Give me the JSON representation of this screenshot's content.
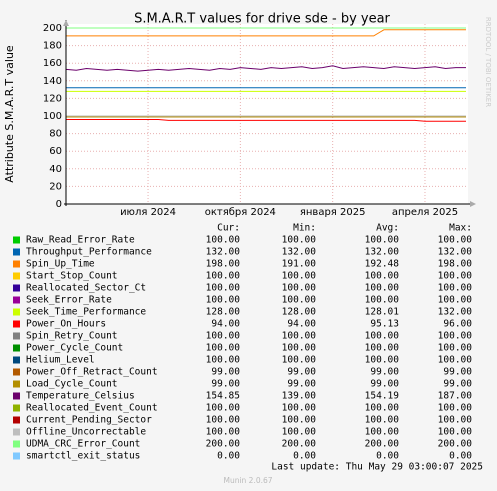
{
  "chart_data": {
    "type": "line",
    "title": "S.M.A.R.T values for drive sde - by year",
    "y_label": "Attribute S.M.A.R.T value",
    "categories": [
      null,
      null,
      null,
      null,
      null,
      null,
      null,
      null,
      "июля 2024",
      null,
      null,
      null,
      null,
      null,
      null,
      null,
      null,
      "октября 2024",
      null,
      null,
      null,
      null,
      null,
      null,
      null,
      null,
      "января 2025",
      null,
      null,
      null,
      null,
      null,
      null,
      null,
      null,
      "апреля 2025",
      null,
      null,
      null,
      null
    ],
    "ylim": [
      0,
      200
    ],
    "yticks": [
      0,
      20,
      40,
      60,
      80,
      100,
      120,
      140,
      160,
      180,
      200
    ],
    "grid": true,
    "columns": [
      "Cur:",
      "Min:",
      "Avg:",
      "Max:"
    ],
    "series": [
      {
        "name": "Raw_Read_Error_Rate",
        "color": "#00cc00",
        "stats": [
          "100.00",
          "100.00",
          "100.00",
          "100.00"
        ],
        "values": [
          100,
          100,
          100,
          100,
          100,
          100,
          100,
          100,
          100,
          100,
          100,
          100,
          100,
          100,
          100,
          100,
          100,
          100,
          100,
          100,
          100,
          100,
          100,
          100,
          100,
          100,
          100,
          100,
          100,
          100,
          100,
          100,
          100,
          100,
          100,
          100,
          100,
          100,
          100,
          100
        ]
      },
      {
        "name": "Throughput_Performance",
        "color": "#0066b3",
        "stats": [
          "132.00",
          "132.00",
          "132.00",
          "132.00"
        ],
        "values": [
          132,
          132,
          132,
          132,
          132,
          132,
          132,
          132,
          132,
          132,
          132,
          132,
          132,
          132,
          132,
          132,
          132,
          132,
          132,
          132,
          132,
          132,
          132,
          132,
          132,
          132,
          132,
          132,
          132,
          132,
          132,
          132,
          132,
          132,
          132,
          132,
          132,
          132,
          132,
          132
        ]
      },
      {
        "name": "Spin_Up_Time",
        "color": "#ff8000",
        "stats": [
          "198.00",
          "191.00",
          "192.48",
          "198.00"
        ],
        "values": [
          191,
          191,
          191,
          191,
          191,
          191,
          191,
          191,
          191,
          191,
          191,
          191,
          191,
          191,
          191,
          191,
          191,
          191,
          191,
          191,
          191,
          191,
          191,
          191,
          191,
          191,
          191,
          191,
          191,
          191,
          191,
          198,
          198,
          198,
          198,
          198,
          198,
          198,
          198,
          198
        ]
      },
      {
        "name": "Start_Stop_Count",
        "color": "#ffcc00",
        "stats": [
          "100.00",
          "100.00",
          "100.00",
          "100.00"
        ],
        "values": [
          100,
          100,
          100,
          100,
          100,
          100,
          100,
          100,
          100,
          100,
          100,
          100,
          100,
          100,
          100,
          100,
          100,
          100,
          100,
          100,
          100,
          100,
          100,
          100,
          100,
          100,
          100,
          100,
          100,
          100,
          100,
          100,
          100,
          100,
          100,
          100,
          100,
          100,
          100,
          100
        ]
      },
      {
        "name": "Reallocated_Sector_Ct",
        "color": "#330099",
        "stats": [
          "100.00",
          "100.00",
          "100.00",
          "100.00"
        ],
        "values": [
          100,
          100,
          100,
          100,
          100,
          100,
          100,
          100,
          100,
          100,
          100,
          100,
          100,
          100,
          100,
          100,
          100,
          100,
          100,
          100,
          100,
          100,
          100,
          100,
          100,
          100,
          100,
          100,
          100,
          100,
          100,
          100,
          100,
          100,
          100,
          100,
          100,
          100,
          100,
          100
        ]
      },
      {
        "name": "Seek_Error_Rate",
        "color": "#990099",
        "stats": [
          "100.00",
          "100.00",
          "100.00",
          "100.00"
        ],
        "values": [
          100,
          100,
          100,
          100,
          100,
          100,
          100,
          100,
          100,
          100,
          100,
          100,
          100,
          100,
          100,
          100,
          100,
          100,
          100,
          100,
          100,
          100,
          100,
          100,
          100,
          100,
          100,
          100,
          100,
          100,
          100,
          100,
          100,
          100,
          100,
          100,
          100,
          100,
          100,
          100
        ]
      },
      {
        "name": "Seek_Time_Performance",
        "color": "#ccff00",
        "stats": [
          "128.00",
          "128.00",
          "128.01",
          "132.00"
        ],
        "values": [
          128,
          128,
          128,
          128,
          128,
          128,
          128,
          128,
          128,
          128,
          128,
          128,
          128,
          128,
          128,
          128,
          128,
          128,
          128,
          128,
          128,
          128,
          128,
          128,
          128,
          128,
          128,
          128,
          128,
          128,
          128,
          128,
          128,
          128,
          128,
          128,
          128,
          128,
          128,
          128
        ]
      },
      {
        "name": "Power_On_Hours",
        "color": "#ff0000",
        "stats": [
          "94.00",
          "94.00",
          "95.13",
          "96.00"
        ],
        "values": [
          96,
          96,
          96,
          96,
          96,
          96,
          96,
          96,
          96,
          96,
          95,
          95,
          95,
          95,
          95,
          95,
          95,
          95,
          95,
          95,
          95,
          95,
          95,
          95,
          95,
          95,
          95,
          95,
          95,
          95,
          95,
          95,
          95,
          95,
          95,
          94,
          94,
          94,
          94,
          94
        ]
      },
      {
        "name": "Spin_Retry_Count",
        "color": "#808080",
        "stats": [
          "100.00",
          "100.00",
          "100.00",
          "100.00"
        ],
        "values": [
          100,
          100,
          100,
          100,
          100,
          100,
          100,
          100,
          100,
          100,
          100,
          100,
          100,
          100,
          100,
          100,
          100,
          100,
          100,
          100,
          100,
          100,
          100,
          100,
          100,
          100,
          100,
          100,
          100,
          100,
          100,
          100,
          100,
          100,
          100,
          100,
          100,
          100,
          100,
          100
        ]
      },
      {
        "name": "Power_Cycle_Count",
        "color": "#008f00",
        "stats": [
          "100.00",
          "100.00",
          "100.00",
          "100.00"
        ],
        "values": [
          100,
          100,
          100,
          100,
          100,
          100,
          100,
          100,
          100,
          100,
          100,
          100,
          100,
          100,
          100,
          100,
          100,
          100,
          100,
          100,
          100,
          100,
          100,
          100,
          100,
          100,
          100,
          100,
          100,
          100,
          100,
          100,
          100,
          100,
          100,
          100,
          100,
          100,
          100,
          100
        ]
      },
      {
        "name": "Helium_Level",
        "color": "#00487d",
        "stats": [
          "100.00",
          "100.00",
          "100.00",
          "100.00"
        ],
        "values": [
          100,
          100,
          100,
          100,
          100,
          100,
          100,
          100,
          100,
          100,
          100,
          100,
          100,
          100,
          100,
          100,
          100,
          100,
          100,
          100,
          100,
          100,
          100,
          100,
          100,
          100,
          100,
          100,
          100,
          100,
          100,
          100,
          100,
          100,
          100,
          100,
          100,
          100,
          100,
          100
        ]
      },
      {
        "name": "Power_Off_Retract_Count",
        "color": "#b35a00",
        "stats": [
          "99.00",
          "99.00",
          "99.00",
          "99.00"
        ],
        "values": [
          99,
          99,
          99,
          99,
          99,
          99,
          99,
          99,
          99,
          99,
          99,
          99,
          99,
          99,
          99,
          99,
          99,
          99,
          99,
          99,
          99,
          99,
          99,
          99,
          99,
          99,
          99,
          99,
          99,
          99,
          99,
          99,
          99,
          99,
          99,
          99,
          99,
          99,
          99,
          99
        ]
      },
      {
        "name": "Load_Cycle_Count",
        "color": "#b38f00",
        "stats": [
          "99.00",
          "99.00",
          "99.00",
          "99.00"
        ],
        "values": [
          99,
          99,
          99,
          99,
          99,
          99,
          99,
          99,
          99,
          99,
          99,
          99,
          99,
          99,
          99,
          99,
          99,
          99,
          99,
          99,
          99,
          99,
          99,
          99,
          99,
          99,
          99,
          99,
          99,
          99,
          99,
          99,
          99,
          99,
          99,
          99,
          99,
          99,
          99,
          99
        ]
      },
      {
        "name": "Temperature_Celsius",
        "color": "#6b006b",
        "stats": [
          "154.85",
          "139.00",
          "154.19",
          "187.00"
        ],
        "values": [
          153,
          152,
          154,
          153,
          152,
          153,
          152,
          151,
          152,
          153,
          152,
          153,
          154,
          153,
          152,
          154,
          153,
          155,
          154,
          153,
          155,
          154,
          155,
          156,
          154,
          155,
          157,
          154,
          155,
          156,
          155,
          154,
          156,
          155,
          154,
          155,
          156,
          154,
          155,
          155
        ]
      },
      {
        "name": "Reallocated_Event_Count",
        "color": "#8fb300",
        "stats": [
          "100.00",
          "100.00",
          "100.00",
          "100.00"
        ],
        "values": [
          100,
          100,
          100,
          100,
          100,
          100,
          100,
          100,
          100,
          100,
          100,
          100,
          100,
          100,
          100,
          100,
          100,
          100,
          100,
          100,
          100,
          100,
          100,
          100,
          100,
          100,
          100,
          100,
          100,
          100,
          100,
          100,
          100,
          100,
          100,
          100,
          100,
          100,
          100,
          100
        ]
      },
      {
        "name": "Current_Pending_Sector",
        "color": "#b30000",
        "stats": [
          "100.00",
          "100.00",
          "100.00",
          "100.00"
        ],
        "values": [
          100,
          100,
          100,
          100,
          100,
          100,
          100,
          100,
          100,
          100,
          100,
          100,
          100,
          100,
          100,
          100,
          100,
          100,
          100,
          100,
          100,
          100,
          100,
          100,
          100,
          100,
          100,
          100,
          100,
          100,
          100,
          100,
          100,
          100,
          100,
          100,
          100,
          100,
          100,
          100
        ]
      },
      {
        "name": "Offline_Uncorrectable",
        "color": "#bebebe",
        "stats": [
          "100.00",
          "100.00",
          "100.00",
          "100.00"
        ],
        "values": [
          100,
          100,
          100,
          100,
          100,
          100,
          100,
          100,
          100,
          100,
          100,
          100,
          100,
          100,
          100,
          100,
          100,
          100,
          100,
          100,
          100,
          100,
          100,
          100,
          100,
          100,
          100,
          100,
          100,
          100,
          100,
          100,
          100,
          100,
          100,
          100,
          100,
          100,
          100,
          100
        ]
      },
      {
        "name": "UDMA_CRC_Error_Count",
        "color": "#80ff80",
        "stats": [
          "200.00",
          "200.00",
          "200.00",
          "200.00"
        ],
        "values": [
          200,
          200,
          200,
          200,
          200,
          200,
          200,
          200,
          200,
          200,
          200,
          200,
          200,
          200,
          200,
          200,
          200,
          200,
          200,
          200,
          200,
          200,
          200,
          200,
          200,
          200,
          200,
          200,
          200,
          200,
          200,
          200,
          200,
          200,
          200,
          200,
          200,
          200,
          200,
          200
        ]
      },
      {
        "name": "smartctl_exit_status",
        "color": "#80c9ff",
        "stats": [
          "0.00",
          "0.00",
          "0.00",
          "0.00"
        ],
        "values": [
          0,
          0,
          0,
          0,
          0,
          0,
          0,
          0,
          0,
          0,
          0,
          0,
          0,
          0,
          0,
          0,
          0,
          0,
          0,
          0,
          0,
          0,
          0,
          0,
          0,
          0,
          0,
          0,
          0,
          0,
          0,
          0,
          0,
          0,
          0,
          0,
          0,
          0,
          0,
          0
        ]
      }
    ]
  },
  "footer": {
    "last_update": "Last update: Thu May 29 03:00:07 2025",
    "version": "Munin 2.0.67"
  },
  "watermark": "RRDTOOL / TOBI OETIKER"
}
